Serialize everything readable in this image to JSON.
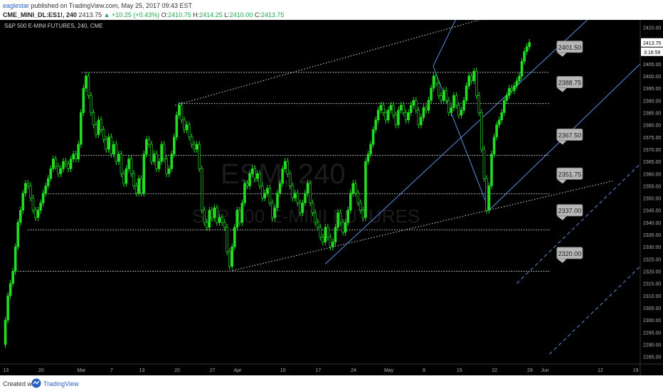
{
  "header": {
    "author": "eaglestar",
    "published_text": "published on TradingView.com, May 25, 2017 09:43 EST",
    "symbol": "CME_MINI_DL:ES1!, 240",
    "last": "2413.75",
    "change": "+10.25 (+0.43%)",
    "ohlc_o_label": "O:",
    "ohlc_o": "2410.75",
    "ohlc_h_label": "H:",
    "ohlc_h": "2414.25",
    "ohlc_l_label": "L:",
    "ohlc_l": "2410.00",
    "ohlc_c_label": "C:",
    "ohlc_c": "2413.75"
  },
  "watermark": {
    "big": "ESM, 240",
    "sub": "S&P 500 E-MINI FUTURES"
  },
  "footer": {
    "created_with": "Created with",
    "brand": "TradingView"
  },
  "colors": {
    "background": "#000000",
    "candle": "#22dd22",
    "trendline": "#5a8fe0",
    "level_line": "#d8d8d8",
    "axis_text": "#b0b0b0",
    "badge_bg": "#b8b8b8"
  },
  "chart_data": {
    "type": "candlestick",
    "title": "S&P 500 E-MINI FUTURES, 240, CME",
    "ylim": [
      2282,
      2423
    ],
    "y_ticks": [
      2285,
      2290,
      2295,
      2300,
      2305,
      2310,
      2315,
      2320,
      2325,
      2330,
      2335,
      2340,
      2345,
      2350,
      2355,
      2360,
      2365,
      2370,
      2375,
      2380,
      2385,
      2390,
      2395,
      2400,
      2405,
      2410,
      2415,
      2420
    ],
    "x_ticks": [
      {
        "label": "13",
        "x": 0.6
      },
      {
        "label": "20",
        "x": 7.6
      },
      {
        "label": "Mar",
        "x": 15.6
      },
      {
        "label": "7",
        "x": 21.6
      },
      {
        "label": "13",
        "x": 27.6
      },
      {
        "label": "20",
        "x": 34.6
      },
      {
        "label": "27",
        "x": 41.6
      },
      {
        "label": "Apr",
        "x": 46.6
      },
      {
        "label": "10",
        "x": 55.6
      },
      {
        "label": "17",
        "x": 62.6
      },
      {
        "label": "24",
        "x": 69.6
      },
      {
        "label": "May",
        "x": 76.6
      },
      {
        "label": "8",
        "x": 83.6
      },
      {
        "label": "15",
        "x": 90.6
      },
      {
        "label": "22",
        "x": 97.6
      },
      {
        "label": "29",
        "x": 104.6
      },
      {
        "label": "Jun",
        "x": 107.6
      },
      {
        "label": "12",
        "x": 118.6
      },
      {
        "label": "19",
        "x": 125.6
      }
    ],
    "xlim": [
      0,
      126.5
    ],
    "price_path": [
      [
        0,
        2290
      ],
      [
        0.5,
        2300
      ],
      [
        1,
        2310
      ],
      [
        1.5,
        2315
      ],
      [
        2,
        2320
      ],
      [
        2.5,
        2330
      ],
      [
        3,
        2340
      ],
      [
        3.5,
        2345
      ],
      [
        4,
        2352
      ],
      [
        4.5,
        2356
      ],
      [
        5,
        2355
      ],
      [
        5.5,
        2350
      ],
      [
        6,
        2345
      ],
      [
        6.5,
        2342
      ],
      [
        7,
        2345
      ],
      [
        7.5,
        2348
      ],
      [
        8,
        2352
      ],
      [
        8.5,
        2355
      ],
      [
        9,
        2358
      ],
      [
        9.5,
        2362
      ],
      [
        10,
        2366
      ],
      [
        10.5,
        2363
      ],
      [
        11,
        2360
      ],
      [
        11.5,
        2362
      ],
      [
        12,
        2365
      ],
      [
        12.5,
        2364
      ],
      [
        13,
        2362
      ],
      [
        13.5,
        2366
      ],
      [
        14,
        2368
      ],
      [
        14.5,
        2366
      ],
      [
        15,
        2372
      ],
      [
        15.5,
        2385
      ],
      [
        16,
        2395
      ],
      [
        16.5,
        2400
      ],
      [
        17,
        2392
      ],
      [
        17.5,
        2385
      ],
      [
        18,
        2380
      ],
      [
        18.5,
        2376
      ],
      [
        19,
        2382
      ],
      [
        19.5,
        2378
      ],
      [
        20,
        2374
      ],
      [
        20.5,
        2370
      ],
      [
        21,
        2375
      ],
      [
        21.5,
        2368
      ],
      [
        22,
        2372
      ],
      [
        22.5,
        2365
      ],
      [
        23,
        2368
      ],
      [
        23.5,
        2360
      ],
      [
        24,
        2356
      ],
      [
        24.5,
        2362
      ],
      [
        25,
        2366
      ],
      [
        25.5,
        2360
      ],
      [
        26,
        2355
      ],
      [
        26.5,
        2352
      ],
      [
        27,
        2358
      ],
      [
        27.5,
        2352
      ],
      [
        28,
        2368
      ],
      [
        28.5,
        2374
      ],
      [
        29,
        2372
      ],
      [
        29.5,
        2365
      ],
      [
        30,
        2368
      ],
      [
        30.5,
        2362
      ],
      [
        31,
        2365
      ],
      [
        31.5,
        2372
      ],
      [
        32,
        2366
      ],
      [
        32.5,
        2360
      ],
      [
        33,
        2362
      ],
      [
        33.5,
        2368
      ],
      [
        34,
        2375
      ],
      [
        34.5,
        2384
      ],
      [
        35,
        2388
      ],
      [
        35.5,
        2382
      ],
      [
        36,
        2378
      ],
      [
        36.5,
        2380
      ],
      [
        37,
        2375
      ],
      [
        37.5,
        2372
      ],
      [
        38,
        2370
      ],
      [
        38.5,
        2372
      ],
      [
        39,
        2362
      ],
      [
        39.5,
        2345
      ],
      [
        40,
        2340
      ],
      [
        40.5,
        2338
      ],
      [
        41,
        2345
      ],
      [
        41.5,
        2342
      ],
      [
        42,
        2346
      ],
      [
        42.5,
        2340
      ],
      [
        43,
        2342
      ],
      [
        43.5,
        2340
      ],
      [
        44,
        2338
      ],
      [
        44.5,
        2328
      ],
      [
        45,
        2322
      ],
      [
        45.5,
        2330
      ],
      [
        46,
        2338
      ],
      [
        46.5,
        2345
      ],
      [
        47,
        2340
      ],
      [
        47.5,
        2348
      ],
      [
        48,
        2356
      ],
      [
        48.5,
        2355
      ],
      [
        49,
        2360
      ],
      [
        49.5,
        2362
      ],
      [
        50,
        2358
      ],
      [
        50.5,
        2360
      ],
      [
        51,
        2355
      ],
      [
        51.5,
        2350
      ],
      [
        52,
        2352
      ],
      [
        52.5,
        2354
      ],
      [
        53,
        2348
      ],
      [
        53.5,
        2342
      ],
      [
        54,
        2346
      ],
      [
        54.5,
        2352
      ],
      [
        55,
        2356
      ],
      [
        55.5,
        2362
      ],
      [
        56,
        2365
      ],
      [
        56.5,
        2360
      ],
      [
        57,
        2355
      ],
      [
        57.5,
        2350
      ],
      [
        58,
        2352
      ],
      [
        58.5,
        2348
      ],
      [
        59,
        2344
      ],
      [
        59.5,
        2348
      ],
      [
        60,
        2352
      ],
      [
        60.5,
        2356
      ],
      [
        61,
        2348
      ],
      [
        61.5,
        2344
      ],
      [
        62,
        2340
      ],
      [
        62.5,
        2338
      ],
      [
        63,
        2334
      ],
      [
        63.5,
        2332
      ],
      [
        64,
        2338
      ],
      [
        64.5,
        2334
      ],
      [
        65,
        2330
      ],
      [
        65.5,
        2332
      ],
      [
        66,
        2338
      ],
      [
        66.5,
        2344
      ],
      [
        67,
        2340
      ],
      [
        67.5,
        2336
      ],
      [
        68,
        2340
      ],
      [
        68.5,
        2345
      ],
      [
        69,
        2352
      ],
      [
        69.5,
        2356
      ],
      [
        70,
        2352
      ],
      [
        70.5,
        2348
      ],
      [
        71,
        2345
      ],
      [
        71.5,
        2342
      ],
      [
        72,
        2365
      ],
      [
        72.5,
        2368
      ],
      [
        73,
        2372
      ],
      [
        73.5,
        2378
      ],
      [
        74,
        2382
      ],
      [
        74.5,
        2386
      ],
      [
        75,
        2388
      ],
      [
        75.5,
        2385
      ],
      [
        76,
        2382
      ],
      [
        76.5,
        2386
      ],
      [
        77,
        2388
      ],
      [
        77.5,
        2384
      ],
      [
        78,
        2380
      ],
      [
        78.5,
        2386
      ],
      [
        79,
        2388
      ],
      [
        79.5,
        2385
      ],
      [
        80,
        2382
      ],
      [
        80.5,
        2385
      ],
      [
        81,
        2388
      ],
      [
        81.5,
        2390
      ],
      [
        82,
        2386
      ],
      [
        82.5,
        2380
      ],
      [
        83,
        2383
      ],
      [
        83.5,
        2387
      ],
      [
        84,
        2386
      ],
      [
        84.5,
        2390
      ],
      [
        85,
        2395
      ],
      [
        85.5,
        2400
      ],
      [
        86,
        2397
      ],
      [
        86.5,
        2392
      ],
      [
        87,
        2390
      ],
      [
        87.5,
        2394
      ],
      [
        88,
        2390
      ],
      [
        88.5,
        2385
      ],
      [
        89,
        2387
      ],
      [
        89.5,
        2392
      ],
      [
        90,
        2388
      ],
      [
        90.5,
        2384
      ],
      [
        91,
        2386
      ],
      [
        91.5,
        2390
      ],
      [
        92,
        2396
      ],
      [
        92.5,
        2400
      ],
      [
        93,
        2398
      ],
      [
        93.5,
        2402
      ],
      [
        94,
        2392
      ],
      [
        94.5,
        2385
      ],
      [
        95,
        2370
      ],
      [
        95.5,
        2358
      ],
      [
        96,
        2345
      ],
      [
        96.5,
        2355
      ],
      [
        97,
        2368
      ],
      [
        97.5,
        2375
      ],
      [
        98,
        2380
      ],
      [
        98.5,
        2382
      ],
      [
        99,
        2385
      ],
      [
        99.5,
        2390
      ],
      [
        100,
        2392
      ],
      [
        100.5,
        2395
      ],
      [
        101,
        2394
      ],
      [
        101.5,
        2396
      ],
      [
        102,
        2398
      ],
      [
        102.5,
        2400
      ],
      [
        103,
        2406
      ],
      [
        103.5,
        2410
      ],
      [
        104,
        2412
      ],
      [
        104.5,
        2413.75
      ]
    ],
    "levels": [
      {
        "value": 2401.5,
        "label": "2401.50",
        "x_start": 15.6,
        "x_end": 108.5
      },
      {
        "value": 2388.75,
        "label": "2388.75",
        "x_start": 35,
        "x_end": 108.5
      },
      {
        "value": 2367.5,
        "label": "2367.50",
        "x_start": 14.5,
        "x_end": 108.5
      },
      {
        "value": 2351.75,
        "label": "2351.75",
        "x_start": 8,
        "x_end": 108.5
      },
      {
        "value": 2337.0,
        "label": "2337.00",
        "x_start": 5,
        "x_end": 108.5
      },
      {
        "value": 2320.0,
        "label": "2320.00",
        "x_start": 2,
        "x_end": 108.5
      }
    ],
    "badges": [
      {
        "label": "2401.50",
        "x": 112.5,
        "y": 2412
      },
      {
        "label": "2388.75",
        "x": 112.5,
        "y": 2397.5
      },
      {
        "label": "2367.50",
        "x": 112.5,
        "y": 2376
      },
      {
        "label": "2351.75",
        "x": 112.5,
        "y": 2360
      },
      {
        "label": "2337.00",
        "x": 112.5,
        "y": 2345
      },
      {
        "label": "2320.00",
        "x": 112.5,
        "y": 2327.5
      }
    ],
    "trendlines": [
      {
        "style": "dotted",
        "color": "white",
        "points": [
          [
            34.2,
            2388
          ],
          [
            98,
            2425
          ]
        ]
      },
      {
        "style": "dotted",
        "color": "white",
        "points": [
          [
            45,
            2320
          ],
          [
            121,
            2357
          ]
        ]
      },
      {
        "style": "solid",
        "color": "blue",
        "points": [
          [
            64,
            2323
          ],
          [
            116,
            2423
          ]
        ]
      },
      {
        "style": "solid",
        "color": "blue",
        "points": [
          [
            96.5,
            2345
          ],
          [
            126.5,
            2405
          ]
        ]
      },
      {
        "style": "solid",
        "color": "blue",
        "points": [
          [
            85.4,
            2404
          ],
          [
            91,
            2428
          ]
        ]
      },
      {
        "style": "solid",
        "color": "blue",
        "points": [
          [
            85.4,
            2404
          ],
          [
            96.5,
            2345
          ]
        ]
      },
      {
        "style": "dashed",
        "color": "blue",
        "points": [
          [
            102,
            2315
          ],
          [
            126.5,
            2364
          ]
        ]
      },
      {
        "style": "dashed",
        "color": "blue",
        "points": [
          [
            108.5,
            2286
          ],
          [
            126.5,
            2322
          ]
        ]
      }
    ],
    "current_price": 2413.75,
    "current_price_label": "2413.75",
    "countdown_label": "3:16:59"
  }
}
